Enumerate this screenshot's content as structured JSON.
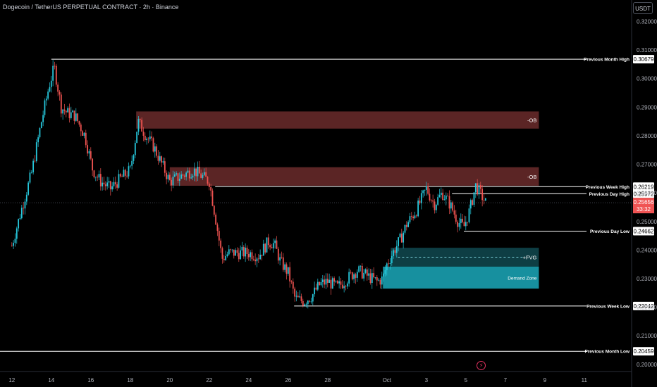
{
  "header": {
    "title": "Dogecoin / TetherUS PERPETUAL CONTRACT · 2h · Binance",
    "unit_button": "USDT"
  },
  "colors": {
    "background": "#000000",
    "candle_up": "#26c6da",
    "candle_down": "#ef5350",
    "ob_zone": "#6b2b2b",
    "demand_zone": "#1aa0b0",
    "fvg_zone": "#0e3e44",
    "level_line": "#ffffff",
    "current_price_tag": "#f05454"
  },
  "chart_data": {
    "type": "candlestick",
    "y_axis": {
      "ticks": [
        "0.32000",
        "0.31000",
        "0.30000",
        "0.29000",
        "0.28000",
        "0.27000",
        "0.26000",
        "0.25000",
        "0.24000",
        "0.23000",
        "0.22000",
        "0.21000",
        "0.20000"
      ],
      "range": [
        0.1975,
        0.3275
      ]
    },
    "x_axis": {
      "ticks": [
        {
          "label": "12",
          "day": 0
        },
        {
          "label": "14",
          "day": 2
        },
        {
          "label": "16",
          "day": 4
        },
        {
          "label": "18",
          "day": 6
        },
        {
          "label": "20",
          "day": 8
        },
        {
          "label": "22",
          "day": 10
        },
        {
          "label": "24",
          "day": 12
        },
        {
          "label": "26",
          "day": 14
        },
        {
          "label": "28",
          "day": 16
        },
        {
          "label": "Oct",
          "day": 19
        },
        {
          "label": "3",
          "day": 21
        },
        {
          "label": "5",
          "day": 23
        },
        {
          "label": "7",
          "day": 25
        },
        {
          "label": "9",
          "day": 27
        },
        {
          "label": "11",
          "day": 29
        }
      ],
      "range": [
        -0.6,
        31.4
      ]
    },
    "price_path": [
      [
        0,
        0.2415
      ],
      [
        0.5,
        0.2545
      ],
      [
        1.0,
        0.267
      ],
      [
        1.5,
        0.285
      ],
      [
        1.9,
        0.2978
      ],
      [
        2.15,
        0.304
      ],
      [
        2.5,
        0.29
      ],
      [
        2.8,
        0.288
      ],
      [
        3.2,
        0.287
      ],
      [
        3.7,
        0.28
      ],
      [
        4.1,
        0.268
      ],
      [
        4.5,
        0.264
      ],
      [
        5.0,
        0.2615
      ],
      [
        5.5,
        0.265
      ],
      [
        6.0,
        0.268
      ],
      [
        6.4,
        0.285
      ],
      [
        6.8,
        0.28
      ],
      [
        7.2,
        0.276
      ],
      [
        7.6,
        0.27
      ],
      [
        8.0,
        0.264
      ],
      [
        8.6,
        0.266
      ],
      [
        9.2,
        0.268
      ],
      [
        9.6,
        0.266
      ],
      [
        10.0,
        0.264
      ],
      [
        10.35,
        0.25
      ],
      [
        10.65,
        0.237
      ],
      [
        11.0,
        0.239
      ],
      [
        11.5,
        0.239
      ],
      [
        12.0,
        0.239
      ],
      [
        12.5,
        0.238
      ],
      [
        13.0,
        0.243
      ],
      [
        13.3,
        0.242
      ],
      [
        13.6,
        0.236
      ],
      [
        14.0,
        0.232
      ],
      [
        14.35,
        0.223
      ],
      [
        14.8,
        0.222
      ],
      [
        15.2,
        0.224
      ],
      [
        15.6,
        0.228
      ],
      [
        16.0,
        0.229
      ],
      [
        16.5,
        0.227
      ],
      [
        17.0,
        0.23
      ],
      [
        17.5,
        0.233
      ],
      [
        18.0,
        0.231
      ],
      [
        18.5,
        0.229
      ],
      [
        18.8,
        0.23
      ],
      [
        19.0,
        0.235
      ],
      [
        19.3,
        0.239
      ],
      [
        19.7,
        0.244
      ],
      [
        20.0,
        0.249
      ],
      [
        20.5,
        0.254
      ],
      [
        21.0,
        0.2615
      ],
      [
        21.4,
        0.256
      ],
      [
        21.8,
        0.26
      ],
      [
        22.2,
        0.256
      ],
      [
        22.6,
        0.25
      ],
      [
        22.9,
        0.248
      ],
      [
        23.2,
        0.254
      ],
      [
        23.5,
        0.2625
      ],
      [
        23.8,
        0.259
      ],
      [
        24.0,
        0.2566
      ]
    ],
    "last_price": "0.25656",
    "countdown": "33:32",
    "levels": [
      {
        "label": "Previous Month High",
        "value": "0.30679",
        "price": 0.30679,
        "from_day": 2.0
      },
      {
        "label": "Previous Week High",
        "value": "0.26219",
        "price": 0.26219,
        "from_day": 10.3
      },
      {
        "label": "Previous Day High",
        "value": "0.25972",
        "price": 0.25972,
        "from_day": 22.3
      },
      {
        "label": "Previous Day Low",
        "value": "0.24662",
        "price": 0.24662,
        "from_day": 22.9
      },
      {
        "label": "Previous Week Low",
        "value": "0.22042",
        "price": 0.22042,
        "from_day": 14.3
      },
      {
        "label": "Previous Month Low",
        "value": "0.20459",
        "price": 0.20459,
        "from_day": -0.6
      }
    ],
    "zones": [
      {
        "label": "-OB",
        "kind": "ob",
        "from_day": 6.3,
        "to_day": 26.7,
        "top": 0.2885,
        "bottom": 0.2825
      },
      {
        "label": "-OB",
        "kind": "ob",
        "from_day": 8.0,
        "to_day": 26.7,
        "top": 0.269,
        "bottom": 0.2625
      },
      {
        "label": "+FVG",
        "kind": "fvg",
        "from_day": 19.2,
        "to_day": 26.7,
        "top": 0.2408,
        "bottom": 0.2342
      },
      {
        "label": "Demand Zone",
        "kind": "demand",
        "from_day": 18.8,
        "to_day": 26.7,
        "top": 0.2342,
        "bottom": 0.2265
      }
    ]
  }
}
